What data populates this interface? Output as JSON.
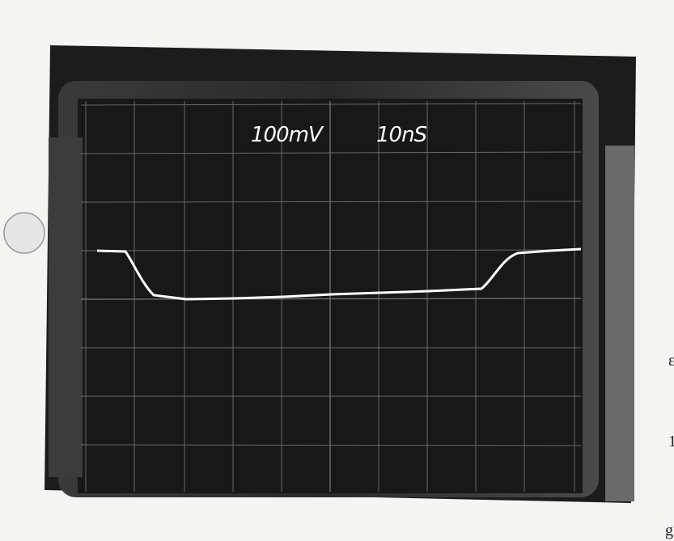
{
  "scope": {
    "volts_per_div": "100mV",
    "time_per_div": "10nS"
  },
  "edge_text": [
    "ε",
    "1",
    "g"
  ]
}
